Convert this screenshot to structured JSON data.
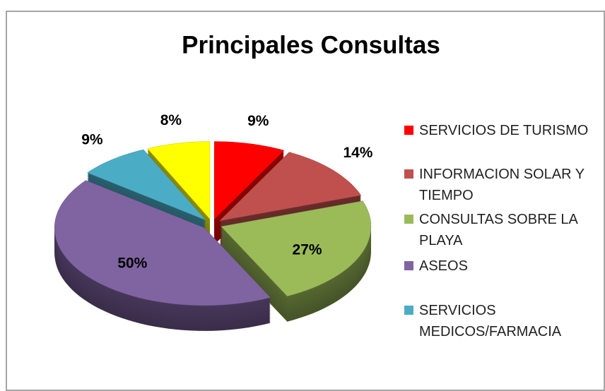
{
  "chart_data": {
    "type": "pie",
    "title": "Principales Consultas",
    "categories": [
      "SERVICIOS DE TURISMO",
      "INFORMACION SOLAR Y TIEMPO",
      "CONSULTAS SOBRE LA PLAYA",
      "ASEOS",
      "SERVICIOS MEDICOS/FARMACIA",
      null
    ],
    "values": [
      9,
      14,
      27,
      50,
      9,
      8
    ],
    "value_labels": [
      "9%",
      "14%",
      "27%",
      "50%",
      "9%",
      "8%"
    ],
    "colors": [
      "#ff0000",
      "#c0504d",
      "#9bbb59",
      "#8064a2",
      "#4bacc6",
      "#ffff00"
    ],
    "legend": "right"
  }
}
